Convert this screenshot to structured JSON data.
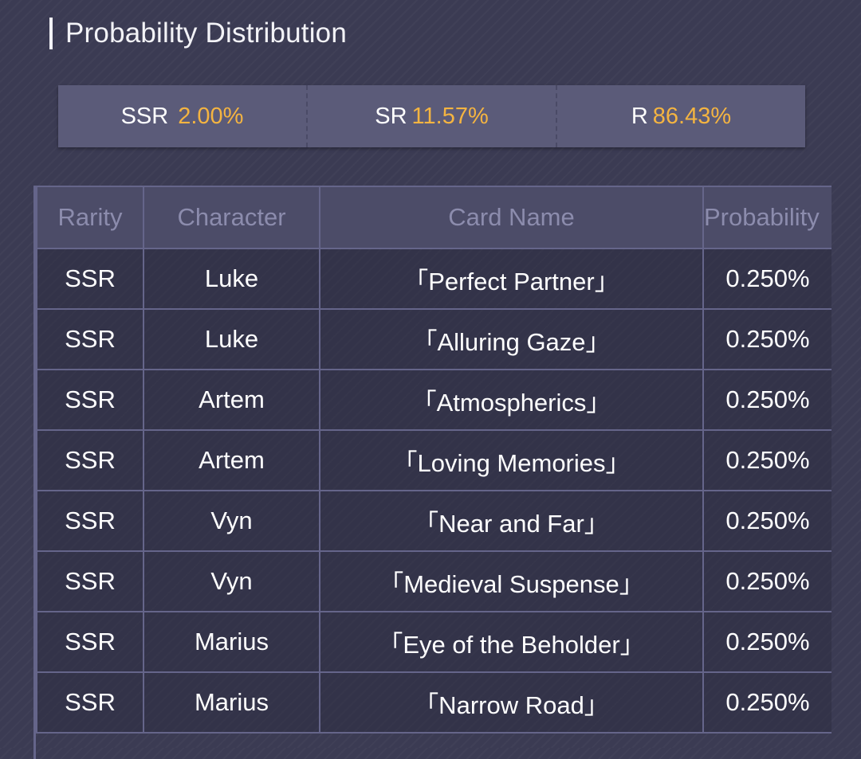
{
  "section": {
    "title": "Probability Distribution"
  },
  "summary": [
    {
      "label": "SSR",
      "value": "2.00%"
    },
    {
      "label": "SR",
      "value": "11.57%"
    },
    {
      "label": "R",
      "value": "86.43%"
    }
  ],
  "table": {
    "headers": {
      "rarity": "Rarity",
      "character": "Character",
      "card_name": "Card Name",
      "probability": "Probability"
    },
    "rows": [
      {
        "rarity": "SSR",
        "character": "Luke",
        "card_name": "「Perfect Partner」",
        "probability": "0.250%"
      },
      {
        "rarity": "SSR",
        "character": "Luke",
        "card_name": "「Alluring Gaze」",
        "probability": "0.250%"
      },
      {
        "rarity": "SSR",
        "character": "Artem",
        "card_name": "「Atmospherics」",
        "probability": "0.250%"
      },
      {
        "rarity": "SSR",
        "character": "Artem",
        "card_name": "「Loving Memories」",
        "probability": "0.250%"
      },
      {
        "rarity": "SSR",
        "character": "Vyn",
        "card_name": "「Near and Far」",
        "probability": "0.250%"
      },
      {
        "rarity": "SSR",
        "character": "Vyn",
        "card_name": "「Medieval Suspense」",
        "probability": "0.250%"
      },
      {
        "rarity": "SSR",
        "character": "Marius",
        "card_name": "「Eye of the Beholder」",
        "probability": "0.250%"
      },
      {
        "rarity": "SSR",
        "character": "Marius",
        "card_name": "「Narrow Road」",
        "probability": "0.250%"
      }
    ]
  }
}
